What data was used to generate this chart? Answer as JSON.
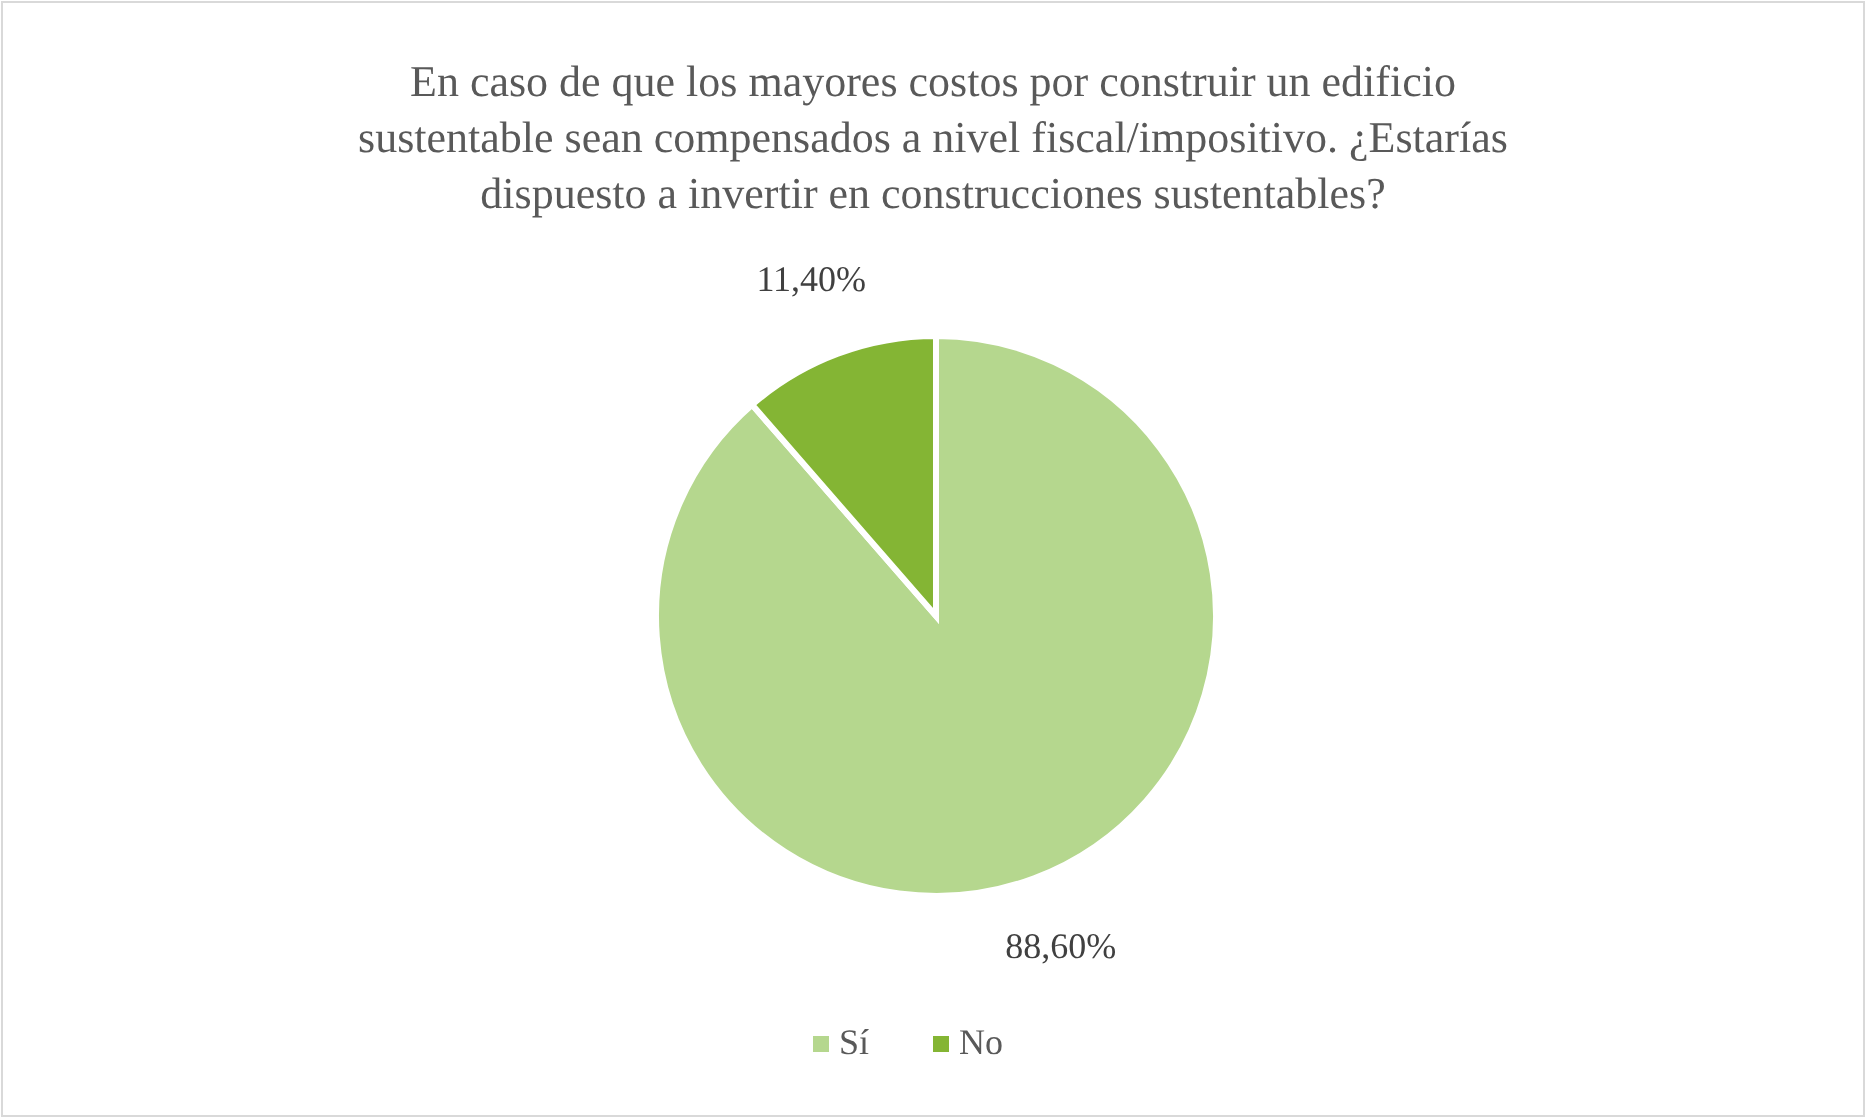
{
  "chart_data": {
    "type": "pie",
    "title": "En caso de que los mayores costos por construir un edificio sustentable sean compensados a nivel fiscal/impositivo. ¿Estarías dispuesto a invertir en construcciones sustentables?",
    "categories": [
      "Sí",
      "No"
    ],
    "values": [
      88.6,
      11.4
    ],
    "colors": [
      "#b5d78e",
      "#84b534"
    ],
    "value_labels": [
      "88,60%",
      "11,40%"
    ],
    "legend": "bottom"
  }
}
